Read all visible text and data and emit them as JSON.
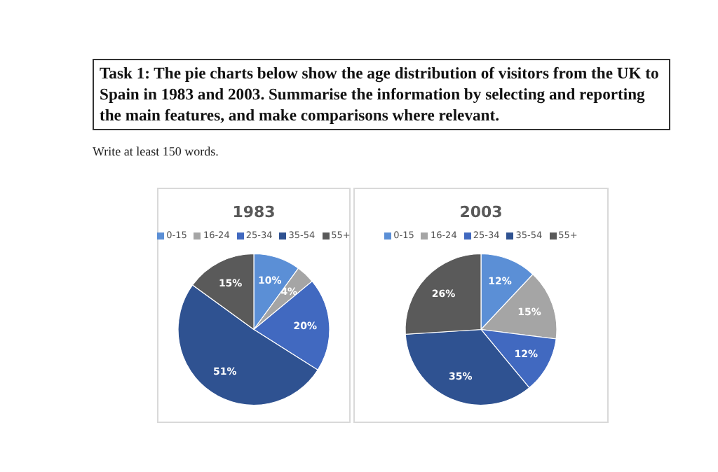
{
  "chart_data": [
    {
      "type": "pie",
      "title": "1983",
      "annotations": [
        "Task 1: The pie charts below show the age distribution of visitors from the UK to Spain in 1983 and 2003. Summarise the information by selecting and reporting the main features, and make comparisons where relevant.",
        "Write at least 150 words."
      ],
      "categories": [
        "0-15",
        "16-24",
        "25-34",
        "35-54",
        "55+"
      ],
      "values": [
        10,
        4,
        20,
        51,
        15
      ],
      "value_labels": [
        "10%",
        "4%",
        "20%",
        "51%",
        "15%"
      ],
      "colors": [
        "#5b8fd6",
        "#a5a5a5",
        "#4169c0",
        "#2f5291",
        "#5a5a5a"
      ],
      "legend": "top"
    },
    {
      "type": "pie",
      "title": "2003",
      "categories": [
        "0-15",
        "16-24",
        "25-34",
        "35-54",
        "55+"
      ],
      "values": [
        12,
        15,
        12,
        35,
        26
      ],
      "value_labels": [
        "12%",
        "15%",
        "12%",
        "35%",
        "26%"
      ],
      "colors": [
        "#5b8fd6",
        "#a5a5a5",
        "#4169c0",
        "#2f5291",
        "#5a5a5a"
      ],
      "legend": "top"
    }
  ]
}
